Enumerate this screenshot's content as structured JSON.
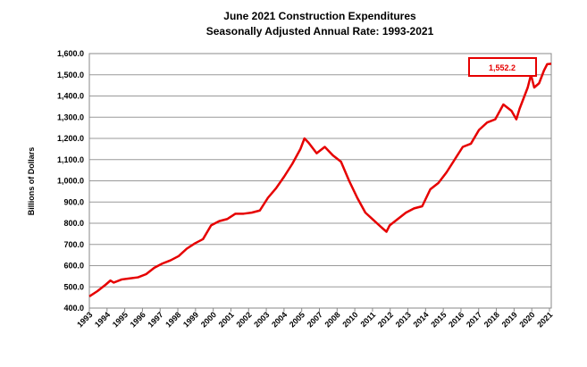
{
  "chart_data": {
    "type": "line",
    "title": "June 2021 Construction Expenditures",
    "subtitle": "Seasonally Adjusted Annual Rate: 1993-2021",
    "y_label": "Billions of Dollars",
    "annotation": "1,552.2",
    "x": [
      1993.0,
      1993.5,
      1994.0,
      1994.3,
      1994.5,
      1995.0,
      1995.5,
      1996.0,
      1996.5,
      1997.0,
      1997.5,
      1998.0,
      1998.5,
      1999.0,
      1999.5,
      2000.0,
      2000.5,
      2001.0,
      2001.5,
      2002.0,
      2002.5,
      2003.0,
      2003.5,
      2004.0,
      2004.5,
      2005.0,
      2005.5,
      2006.0,
      2006.25,
      2006.5,
      2007.0,
      2007.5,
      2008.0,
      2008.5,
      2009.0,
      2009.5,
      2010.0,
      2010.5,
      2011.0,
      2011.3,
      2011.5,
      2012.0,
      2012.5,
      2013.0,
      2013.5,
      2014.0,
      2014.5,
      2015.0,
      2015.5,
      2016.0,
      2016.5,
      2017.0,
      2017.5,
      2018.0,
      2018.5,
      2019.0,
      2019.3,
      2019.5,
      2020.0,
      2020.2,
      2020.4,
      2020.7,
      2021.0,
      2021.2,
      2021.45
    ],
    "series": [
      {
        "name": "Construction Expenditures",
        "color": "#e60000",
        "values": [
          455,
          480,
          510,
          530,
          520,
          535,
          540,
          545,
          560,
          590,
          610,
          625,
          645,
          680,
          705,
          725,
          790,
          810,
          820,
          845,
          845,
          850,
          860,
          920,
          965,
          1020,
          1080,
          1150,
          1200,
          1180,
          1130,
          1160,
          1120,
          1090,
          1000,
          920,
          850,
          815,
          780,
          760,
          790,
          820,
          850,
          870,
          880,
          960,
          990,
          1040,
          1100,
          1160,
          1175,
          1240,
          1275,
          1290,
          1360,
          1330,
          1290,
          1340,
          1440,
          1500,
          1440,
          1460,
          1520,
          1550,
          1552.2
        ]
      }
    ],
    "xlim": [
      1993,
      2021.45
    ],
    "xticks": [
      {
        "value": 1993.0,
        "label": "1993"
      },
      {
        "value": 1994.09,
        "label": "1994"
      },
      {
        "value": 1995.18,
        "label": "1995"
      },
      {
        "value": 1996.27,
        "label": "1996"
      },
      {
        "value": 1997.36,
        "label": "1997"
      },
      {
        "value": 1998.45,
        "label": "1998"
      },
      {
        "value": 1999.54,
        "label": "1999"
      },
      {
        "value": 2000.63,
        "label": "2000"
      },
      {
        "value": 2001.72,
        "label": "2001"
      },
      {
        "value": 2002.81,
        "label": "2002"
      },
      {
        "value": 2003.9,
        "label": "2003"
      },
      {
        "value": 2004.99,
        "label": "2004"
      },
      {
        "value": 2006.08,
        "label": "2005"
      },
      {
        "value": 2007.17,
        "label": "2007"
      },
      {
        "value": 2008.26,
        "label": "2008"
      },
      {
        "value": 2009.35,
        "label": "2010"
      },
      {
        "value": 2010.44,
        "label": "2011"
      },
      {
        "value": 2011.53,
        "label": "2012"
      },
      {
        "value": 2012.62,
        "label": "2013"
      },
      {
        "value": 2013.71,
        "label": "2014"
      },
      {
        "value": 2014.8,
        "label": "2015"
      },
      {
        "value": 2015.89,
        "label": "2016"
      },
      {
        "value": 2016.98,
        "label": "2017"
      },
      {
        "value": 2018.07,
        "label": "2018"
      },
      {
        "value": 2019.16,
        "label": "2019"
      },
      {
        "value": 2020.25,
        "label": "2020"
      },
      {
        "value": 2021.34,
        "label": "2021"
      }
    ],
    "ylim": [
      400,
      1600
    ],
    "yticks": [
      {
        "value": 400,
        "label": "400.0"
      },
      {
        "value": 500,
        "label": "500.0"
      },
      {
        "value": 600,
        "label": "600.0"
      },
      {
        "value": 700,
        "label": "700.0"
      },
      {
        "value": 800,
        "label": "800.0"
      },
      {
        "value": 900,
        "label": "900.0"
      },
      {
        "value": 1000,
        "label": "1,000.0"
      },
      {
        "value": 1100,
        "label": "1,100.0"
      },
      {
        "value": 1200,
        "label": "1,200.0"
      },
      {
        "value": 1300,
        "label": "1,300.0"
      },
      {
        "value": 1400,
        "label": "1,400.0"
      },
      {
        "value": 1500,
        "label": "1,500.0"
      },
      {
        "value": 1600,
        "label": "1,600.0"
      }
    ],
    "grid": true
  }
}
